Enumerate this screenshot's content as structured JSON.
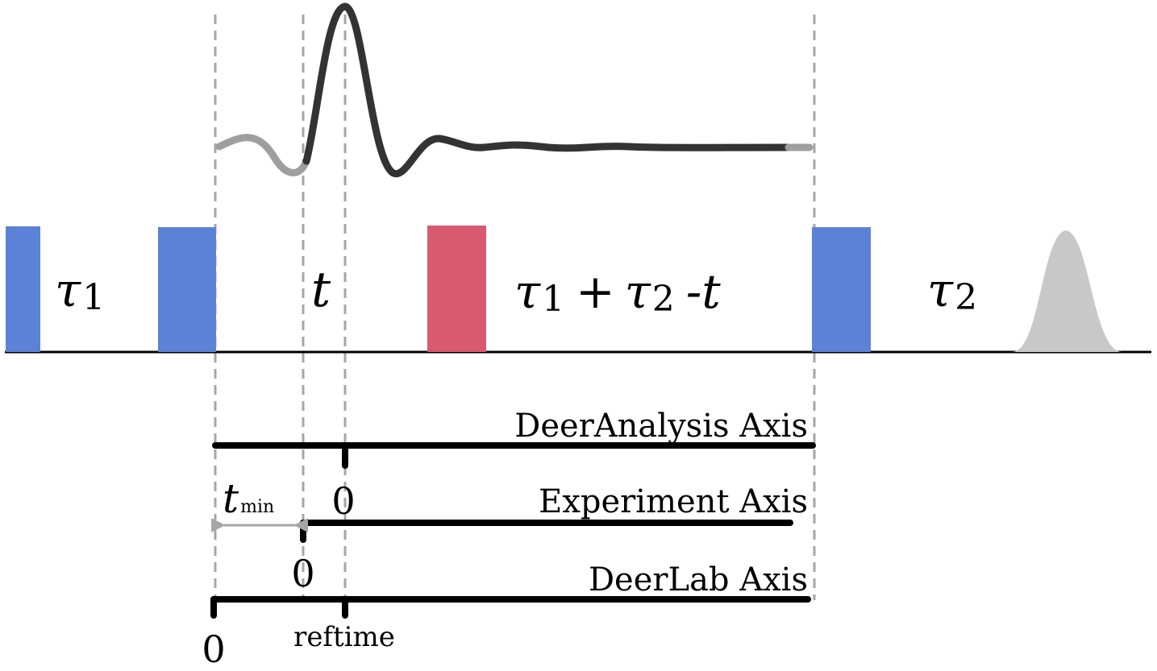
{
  "colors": {
    "pulse_blue": "#5b82d6",
    "pulse_red": "#d85a6e",
    "echo": "#c8c8c8",
    "signal_dark": "#333333",
    "signal_light": "#9e9e9e",
    "guide": "#a6a6a6",
    "axis": "#000000"
  },
  "delays": {
    "tau1": {
      "symbol": "τ",
      "sub": "1"
    },
    "t": {
      "symbol": "t"
    },
    "tau1_tau2_minus_t": {
      "s1": "τ",
      "sub1": "1",
      "plus": "+",
      "s2": "τ",
      "sub2": "2",
      "minus": "-t"
    },
    "tau2": {
      "symbol": "τ",
      "sub": "2"
    }
  },
  "axes": {
    "deeranalysis": {
      "label": "DeerAnalysis Axis",
      "zero": "0"
    },
    "experiment": {
      "label": "Experiment Axis",
      "zero": "0"
    },
    "deerlab": {
      "label": "DeerLab Axis",
      "zero": "0"
    }
  },
  "annotations": {
    "tmin": {
      "symbol": "t",
      "sub": "min"
    },
    "reftime": "reftime"
  }
}
